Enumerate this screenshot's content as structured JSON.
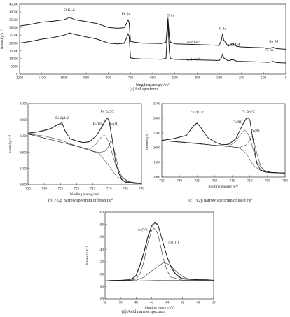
{
  "chart_data": [
    {
      "id": "a",
      "type": "line",
      "caption": "(a) full spectrum",
      "xlabel": "bingding energy /eV",
      "ylabel": "intensity/s⁻¹",
      "xlim": [
        1200,
        0
      ],
      "ylim": [
        0,
        45000
      ],
      "x_ticks": [
        1200,
        1100,
        1000,
        900,
        800,
        700,
        600,
        500,
        400,
        300,
        200,
        100,
        0
      ],
      "y_ticks": [
        0,
        5000,
        10000,
        15000,
        20000,
        25000,
        30000,
        35000,
        40000,
        45000
      ],
      "x_tick_labels": [
        "1200",
        "1100",
        "1000",
        "900",
        "800",
        "700",
        "600",
        "500",
        "400",
        "300",
        "200",
        "100",
        "0"
      ],
      "y_tick_labels": [
        "0",
        "5000",
        "10000",
        "15000",
        "20000",
        "25000",
        "30000",
        "35000",
        "40000",
        "45000"
      ],
      "annotations": [
        {
          "text": "O KLL",
          "x": 975,
          "y": 40500
        },
        {
          "text": "Fe 2p",
          "x": 720,
          "y": 38200
        },
        {
          "text": "O 1s",
          "x": 520,
          "y": 37200
        },
        {
          "text": "C 1s",
          "x": 285,
          "y": 28500
        },
        {
          "text": "As LMM",
          "x": 240,
          "y": 18200
        },
        {
          "text": "As 3d",
          "x": 55,
          "y": 20500
        },
        {
          "text": "Fe 3p",
          "x": 75,
          "y": 14800
        },
        {
          "text": "used Fe⁰",
          "x": 420,
          "y": 19800
        },
        {
          "text": "fresh Fe⁰",
          "x": 420,
          "y": 8800
        }
      ],
      "series": [
        {
          "name": "used Fe⁰",
          "x": [
            1200,
            1150,
            1100,
            1050,
            1000,
            975,
            950,
            900,
            850,
            800,
            760,
            730,
            720,
            711,
            706,
            700,
            680,
            650,
            600,
            560,
            540,
            531,
            525,
            520,
            500,
            450,
            400,
            350,
            300,
            290,
            285,
            280,
            260,
            240,
            220,
            200,
            150,
            100,
            80,
            55,
            45,
            20,
            0
          ],
          "y": [
            31000,
            32000,
            33500,
            34000,
            35000,
            36500,
            35000,
            33800,
            32500,
            30000,
            29500,
            29800,
            32000,
            35000,
            33000,
            21000,
            20500,
            20000,
            19800,
            19700,
            20500,
            36000,
            24000,
            20500,
            19500,
            19200,
            19000,
            18800,
            18500,
            22000,
            26000,
            22000,
            18000,
            19500,
            17800,
            17500,
            17200,
            17000,
            16500,
            17200,
            16500,
            16200,
            16000
          ]
        },
        {
          "name": "fresh Fe⁰",
          "x": [
            1200,
            1150,
            1100,
            1050,
            1000,
            975,
            950,
            900,
            850,
            800,
            760,
            730,
            720,
            711,
            706,
            700,
            680,
            650,
            600,
            560,
            540,
            531,
            525,
            520,
            500,
            450,
            400,
            350,
            300,
            290,
            285,
            280,
            260,
            240,
            220,
            200,
            150,
            100,
            80,
            55,
            45,
            20,
            0
          ],
          "y": [
            20000,
            21000,
            22500,
            23500,
            25000,
            26500,
            25500,
            24000,
            22500,
            20000,
            19500,
            19800,
            22500,
            26000,
            24500,
            10500,
            10000,
            9800,
            9700,
            9600,
            10200,
            33500,
            14000,
            10000,
            9500,
            9300,
            9200,
            9000,
            8800,
            10500,
            13000,
            10500,
            8600,
            9400,
            8300,
            8200,
            8000,
            7800,
            7600,
            8200,
            7500,
            7300,
            7200
          ]
        }
      ]
    },
    {
      "id": "b",
      "type": "line",
      "caption": "(b) Fe2p narrow spectrum of fresh Fe⁰",
      "xlabel": "binding energy/eV",
      "ylabel": "intensity/s⁻¹",
      "xlim": [
        735,
        700
      ],
      "ylim": [
        1000,
        3500
      ],
      "x_ticks": [
        735,
        730,
        725,
        720,
        715,
        710,
        705,
        700
      ],
      "y_ticks": [
        1000,
        1500,
        2000,
        2500,
        3000,
        3500
      ],
      "x_tick_labels": [
        "735",
        "730",
        "725",
        "720",
        "715",
        "710",
        "705",
        "700"
      ],
      "y_tick_labels": [
        "1000",
        "1500",
        "2000",
        "2500",
        "3000",
        "3500"
      ],
      "annotations": [
        {
          "text": "Fe 2p1/2",
          "x": 724.5,
          "y": 3030
        },
        {
          "text": "Fe 2p3/2",
          "x": 710.5,
          "y": 3230
        },
        {
          "text": "Fe(III)",
          "x": 713.5,
          "y": 2830
        },
        {
          "text": "Fe(II)",
          "x": 708.5,
          "y": 2830
        }
      ],
      "series": [
        {
          "name": "raw",
          "x": [
            735,
            732,
            730,
            728,
            726,
            724.5,
            723.5,
            722,
            720,
            718,
            716,
            714,
            712,
            711,
            710.5,
            710,
            709,
            708,
            707,
            706,
            705,
            704,
            702,
            700
          ],
          "y": [
            2590,
            2630,
            2680,
            2730,
            2850,
            2910,
            2640,
            2420,
            2350,
            2300,
            2330,
            2500,
            2830,
            3010,
            3050,
            2980,
            2400,
            1700,
            1350,
            1150,
            1080,
            1060,
            1040,
            1030
          ]
        },
        {
          "name": "envelope",
          "x": [
            735,
            732,
            730,
            728,
            726,
            724.5,
            723.5,
            722,
            720,
            718,
            716,
            714,
            712,
            711,
            710.5,
            710,
            709,
            708,
            707,
            706,
            705,
            704,
            702,
            700
          ],
          "y": [
            2570,
            2620,
            2660,
            2720,
            2830,
            2880,
            2660,
            2410,
            2340,
            2290,
            2320,
            2490,
            2800,
            2980,
            3010,
            2950,
            2380,
            1720,
            1370,
            1170,
            1090,
            1070,
            1050,
            1040
          ]
        },
        {
          "name": "background",
          "x": [
            735,
            730,
            725,
            720,
            716,
            713,
            710,
            708,
            706,
            704,
            702,
            700
          ],
          "y": [
            2560,
            2500,
            2380,
            2190,
            2060,
            1960,
            1580,
            1300,
            1150,
            1080,
            1050,
            1040
          ]
        },
        {
          "name": "Fe(III)",
          "x": [
            735,
            720,
            716,
            714,
            713,
            712,
            711.5,
            711,
            710,
            709,
            708,
            706,
            704,
            700
          ],
          "y": [
            2560,
            2190,
            2090,
            2250,
            2400,
            2500,
            2520,
            2490,
            2300,
            1950,
            1600,
            1250,
            1100,
            1040
          ]
        },
        {
          "name": "Fe(II)",
          "x": [
            735,
            720,
            716,
            713,
            711,
            710,
            709.5,
            709,
            708,
            707,
            706,
            704,
            700
          ],
          "y": [
            2560,
            2190,
            2060,
            1990,
            2040,
            2200,
            2350,
            2300,
            1900,
            1450,
            1220,
            1090,
            1040
          ]
        }
      ]
    },
    {
      "id": "c",
      "type": "line",
      "caption": "(c) Fe2p narrow spectrum of used Fe⁰",
      "xlabel": "binding energy /eV",
      "ylabel": "intensity/s⁻¹",
      "xlim": [
        735,
        700
      ],
      "ylim": [
        1000,
        3500
      ],
      "x_ticks": [
        735,
        730,
        725,
        720,
        715,
        710,
        705,
        700
      ],
      "y_ticks": [
        1000,
        1500,
        2000,
        2500,
        3000,
        3500
      ],
      "x_tick_labels": [
        "735",
        "730",
        "725",
        "720",
        "715",
        "710",
        "705",
        "700"
      ],
      "y_tick_labels": [
        "1000",
        "1500",
        "2000",
        "2500",
        "3000",
        "3500"
      ],
      "annotations": [
        {
          "text": "Fe 2p1/2",
          "x": 725,
          "y": 3180
        },
        {
          "text": "Fe 2p3/2",
          "x": 710.5,
          "y": 3200
        },
        {
          "text": "Fe(III)",
          "x": 713.5,
          "y": 2830
        },
        {
          "text": "Fe(II)",
          "x": 708.5,
          "y": 2530
        }
      ],
      "series": [
        {
          "name": "raw",
          "x": [
            735,
            732,
            730,
            728,
            726,
            725,
            724,
            722,
            720,
            718,
            716,
            714,
            712,
            711,
            710.5,
            710,
            709,
            708,
            707,
            706,
            705,
            704,
            702,
            700
          ],
          "y": [
            2250,
            2300,
            2360,
            2420,
            2750,
            2840,
            2700,
            2350,
            2200,
            2100,
            2120,
            2300,
            2800,
            3000,
            3020,
            2950,
            2200,
            1450,
            1250,
            1180,
            1160,
            1150,
            1140,
            1130
          ]
        },
        {
          "name": "envelope",
          "x": [
            735,
            732,
            730,
            728,
            726,
            725,
            724,
            722,
            720,
            718,
            716,
            714,
            712,
            711,
            710.5,
            710,
            709,
            708,
            707,
            706,
            705,
            704,
            702,
            700
          ],
          "y": [
            2240,
            2290,
            2350,
            2410,
            2730,
            2820,
            2690,
            2340,
            2190,
            2090,
            2110,
            2290,
            2780,
            2980,
            3000,
            2930,
            2180,
            1470,
            1260,
            1190,
            1170,
            1160,
            1150,
            1140
          ]
        },
        {
          "name": "background",
          "x": [
            735,
            730,
            725,
            720,
            716,
            713,
            711,
            709,
            707,
            705,
            702,
            700
          ],
          "y": [
            2240,
            2200,
            2150,
            2080,
            2040,
            2000,
            1800,
            1400,
            1220,
            1170,
            1150,
            1140
          ]
        },
        {
          "name": "Fe(III)",
          "x": [
            735,
            720,
            716,
            714,
            713,
            712,
            711.5,
            711,
            710,
            709,
            708,
            706,
            704,
            700
          ],
          "y": [
            2240,
            2080,
            2050,
            2200,
            2400,
            2550,
            2600,
            2560,
            2350,
            1900,
            1500,
            1220,
            1160,
            1140
          ]
        },
        {
          "name": "Fe(II)",
          "x": [
            735,
            720,
            716,
            713,
            711,
            710,
            709.5,
            709,
            708,
            707,
            706,
            704,
            700
          ],
          "y": [
            2240,
            2080,
            2040,
            2000,
            2100,
            2250,
            2400,
            2300,
            1800,
            1400,
            1230,
            1160,
            1140
          ]
        }
      ]
    },
    {
      "id": "d",
      "type": "line",
      "caption": "(d) As3d narrow spectrum",
      "xlabel": "binding energy/eV",
      "ylabel": "intensity/s⁻¹",
      "xlim": [
        52,
        38
      ],
      "ylim": [
        60,
        200
      ],
      "x_ticks": [
        52,
        50,
        48,
        46,
        44,
        42,
        40,
        38
      ],
      "y_ticks": [
        60,
        80,
        100,
        120,
        140,
        160,
        180,
        200
      ],
      "x_tick_labels": [
        "52",
        "50",
        "48",
        "46",
        "44",
        "42",
        "40",
        "38"
      ],
      "y_tick_labels": [
        "60",
        "80",
        "100",
        "120",
        "140",
        "160",
        "180",
        "200"
      ],
      "annotations": [
        {
          "text": "As(V)",
          "x": 47.2,
          "y": 170
        },
        {
          "text": "As(III)",
          "x": 43.2,
          "y": 150
        }
      ],
      "series": [
        {
          "name": "raw",
          "x": [
            52,
            51,
            50,
            49,
            48.5,
            48,
            47.5,
            47,
            46.5,
            46,
            45.6,
            45.2,
            45,
            44.5,
            44,
            43.5,
            43,
            42.5,
            42,
            41,
            40,
            39,
            38
          ],
          "y": [
            89,
            90,
            90,
            91,
            93,
            98,
            115,
            135,
            160,
            178,
            184,
            180,
            172,
            150,
            128,
            112,
            102,
            96,
            93,
            92,
            91,
            91,
            90
          ]
        },
        {
          "name": "envelope",
          "x": [
            52,
            51,
            50,
            49,
            48.5,
            48,
            47.5,
            47,
            46.5,
            46,
            45.6,
            45.2,
            45,
            44.5,
            44,
            43.5,
            43,
            42.5,
            42,
            41,
            40,
            39,
            38
          ],
          "y": [
            89,
            89,
            90,
            90,
            92,
            97,
            113,
            133,
            158,
            176,
            182,
            179,
            171,
            149,
            127,
            111,
            101,
            95,
            92,
            91,
            90,
            90,
            90
          ]
        },
        {
          "name": "background",
          "x": [
            52,
            48,
            46,
            44,
            42,
            40,
            38
          ],
          "y": [
            89,
            89,
            89.5,
            90,
            90,
            90,
            90
          ]
        },
        {
          "name": "As(V)",
          "x": [
            52,
            49,
            48,
            47.5,
            47,
            46.5,
            46,
            45.7,
            45.3,
            45,
            44.5,
            44,
            43.5,
            42,
            38
          ],
          "y": [
            89,
            89,
            92,
            100,
            120,
            150,
            170,
            174,
            168,
            155,
            125,
            105,
            95,
            90,
            90
          ]
        },
        {
          "name": "As(III)",
          "x": [
            52,
            48,
            47,
            46,
            45,
            44.5,
            44,
            43.5,
            43,
            42,
            41,
            38
          ],
          "y": [
            89,
            90,
            95,
            105,
            114,
            118,
            117,
            113,
            106,
            96,
            91,
            90
          ]
        }
      ]
    }
  ]
}
